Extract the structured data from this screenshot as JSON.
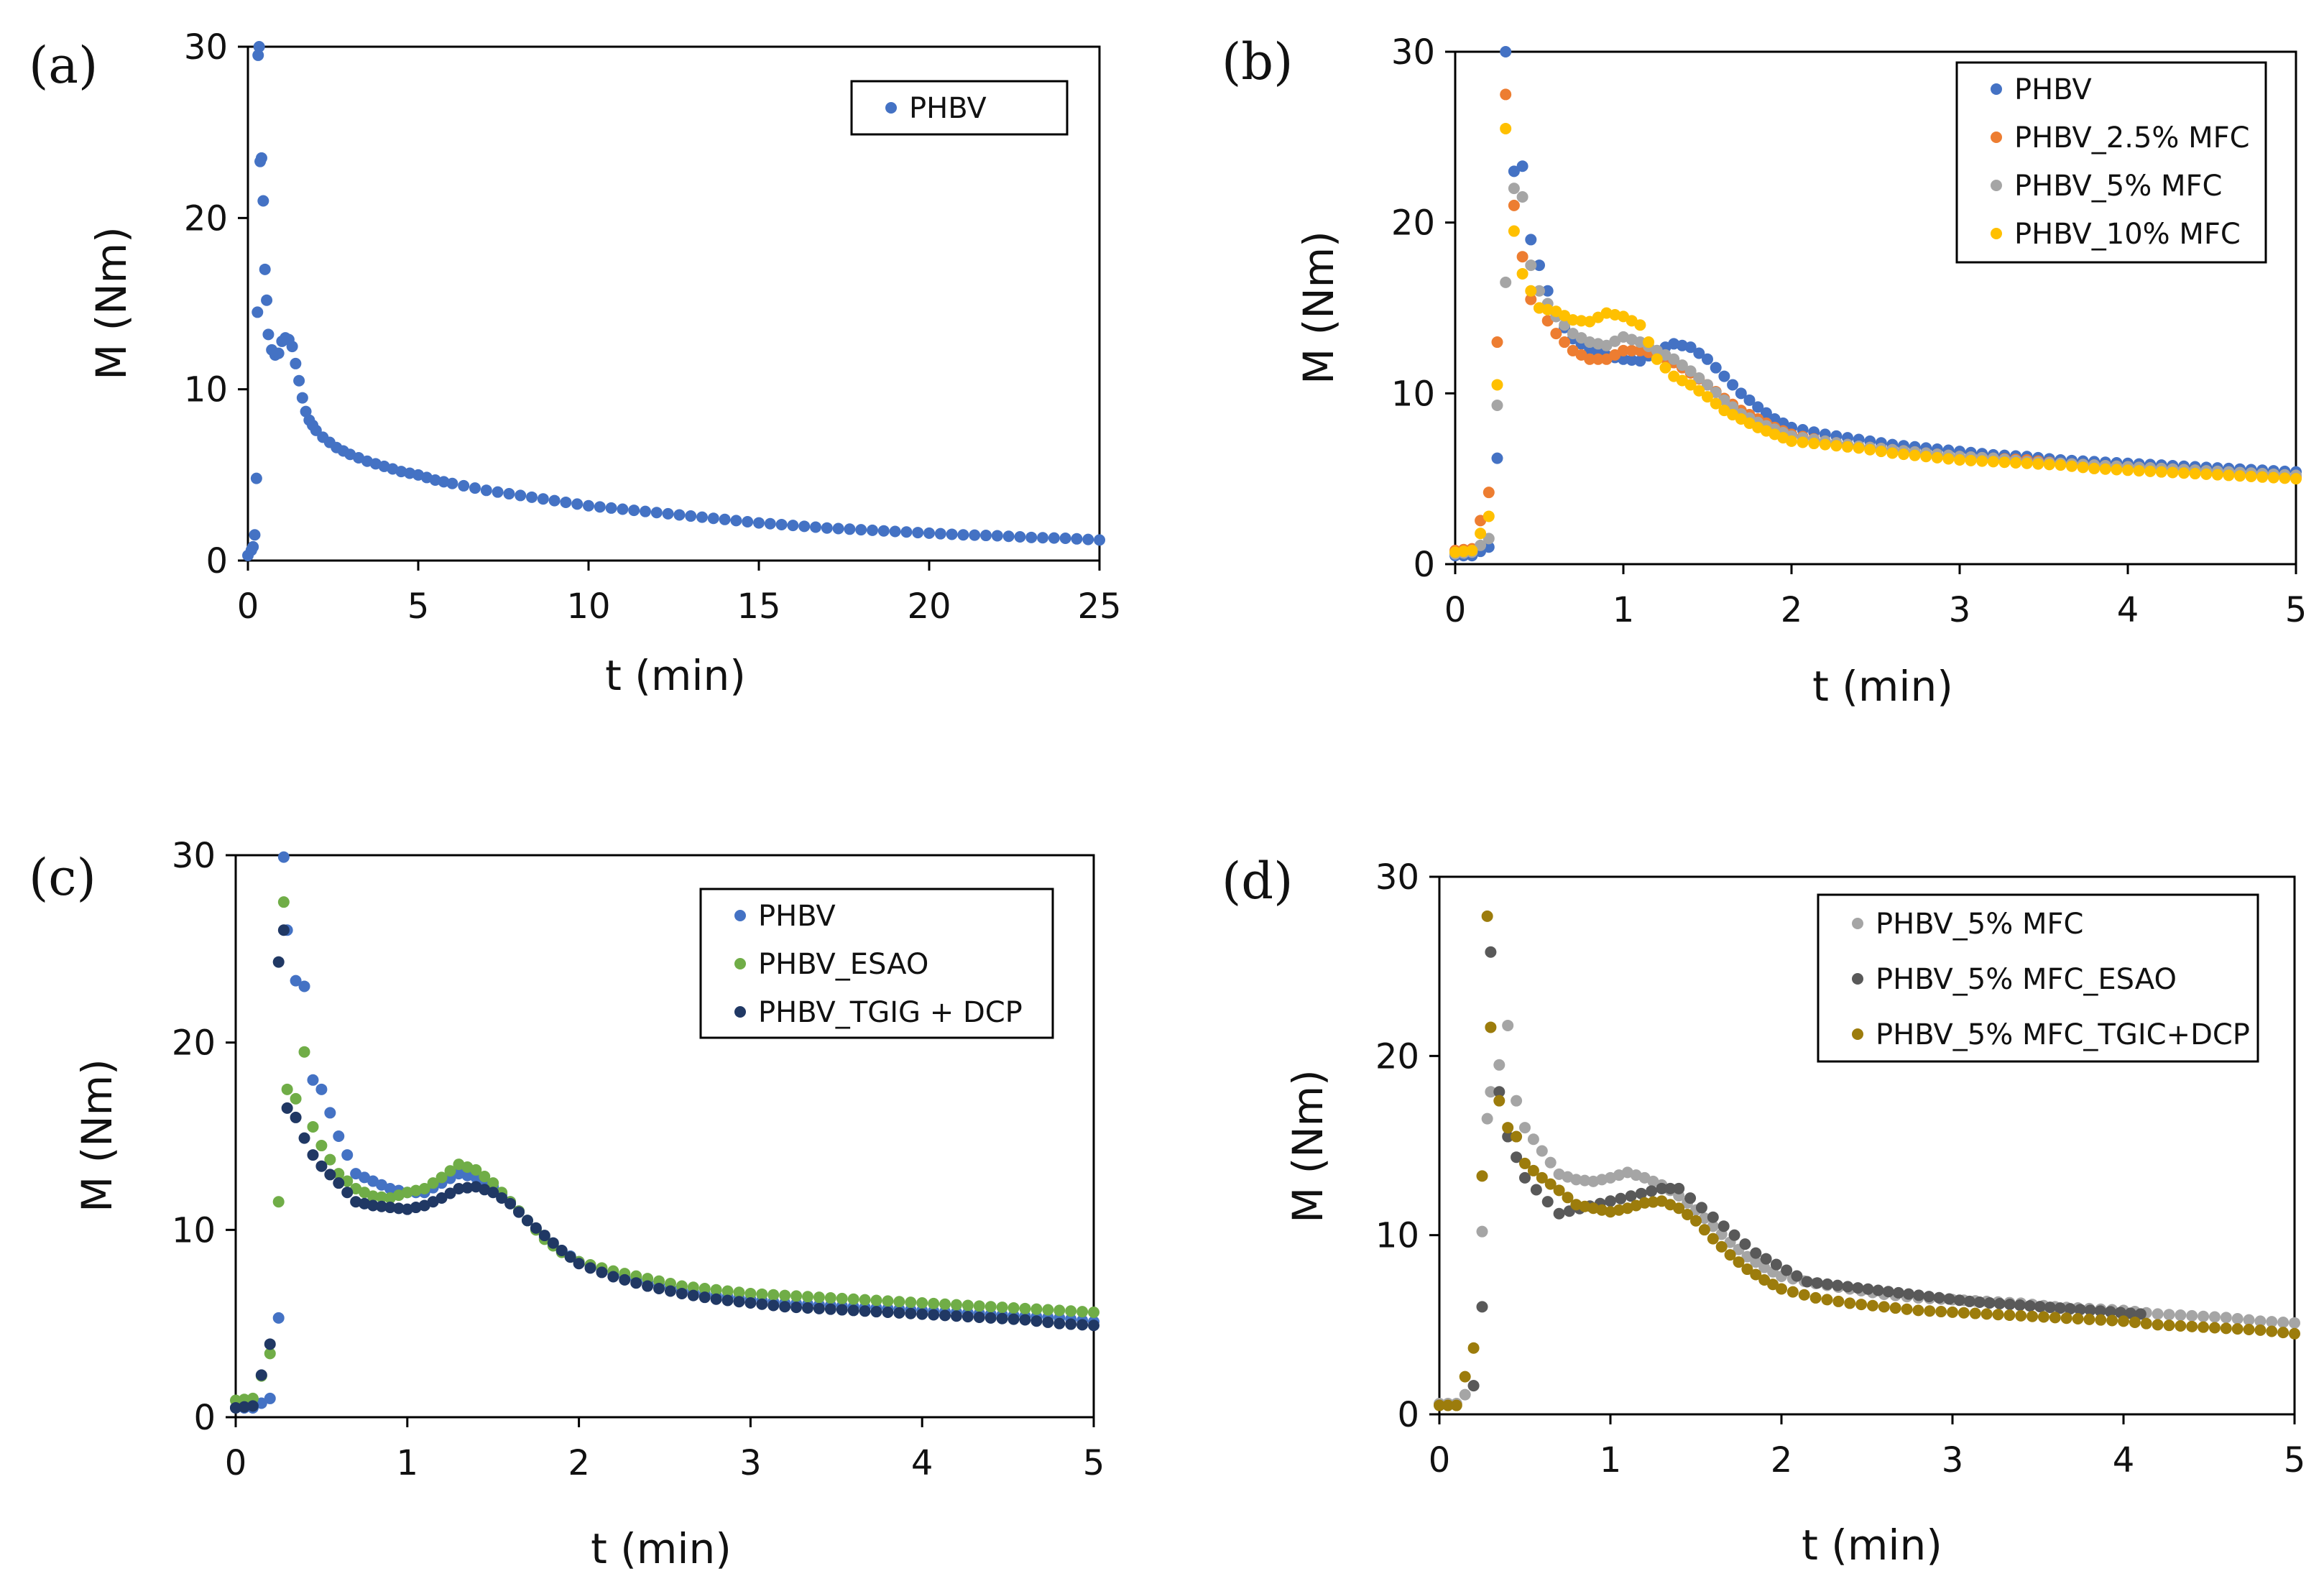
{
  "chart_data": [
    {
      "type": "scatter",
      "panel_label": "(a)",
      "xlabel": "t (min)",
      "ylabel": "M (Nm)",
      "xlim": [
        0,
        25
      ],
      "ylim": [
        0,
        30
      ],
      "xticks": [
        0,
        5,
        10,
        15,
        20,
        25
      ],
      "yticks": [
        0,
        10,
        20,
        30
      ],
      "legend_position": "top-right",
      "series": [
        {
          "name": "PHBV",
          "color": "#4472c4",
          "x": [
            0,
            0.1,
            0.15,
            0.2,
            0.25,
            0.28,
            0.3,
            0.33,
            0.36,
            0.4,
            0.45,
            0.5,
            0.55,
            0.6,
            0.7,
            0.8,
            0.9,
            1.0,
            1.1,
            1.2,
            1.3,
            1.4,
            1.5,
            1.6,
            1.7,
            1.8,
            1.9,
            2.0,
            2.2,
            2.4,
            2.6,
            2.8,
            3.0,
            3.5,
            4.0,
            4.5,
            5.0,
            5.5,
            6.0,
            7.0,
            8.0,
            9.0,
            10.0,
            11.0,
            12.0,
            13.0,
            14.0,
            15.0,
            16.0,
            17.0,
            18.0,
            19.0,
            20.0,
            21.0,
            22.0,
            23.0,
            24.0,
            25.0
          ],
          "y": [
            0.3,
            0.6,
            0.8,
            1.5,
            4.8,
            14.5,
            29.5,
            30.0,
            23.3,
            23.5,
            21.0,
            17.0,
            15.2,
            13.2,
            12.3,
            12.0,
            12.1,
            12.8,
            13.0,
            12.9,
            12.5,
            11.5,
            10.5,
            9.5,
            8.7,
            8.2,
            7.9,
            7.6,
            7.2,
            6.9,
            6.6,
            6.4,
            6.2,
            5.8,
            5.5,
            5.2,
            5.0,
            4.7,
            4.5,
            4.1,
            3.8,
            3.5,
            3.2,
            3.0,
            2.8,
            2.6,
            2.4,
            2.2,
            2.05,
            1.9,
            1.8,
            1.7,
            1.6,
            1.5,
            1.45,
            1.35,
            1.3,
            1.2
          ]
        }
      ]
    },
    {
      "type": "scatter",
      "panel_label": "(b)",
      "xlabel": "t (min)",
      "ylabel": "M (Nm)",
      "xlim": [
        0,
        5
      ],
      "ylim": [
        0,
        30
      ],
      "xticks": [
        0,
        1,
        2,
        3,
        4,
        5
      ],
      "yticks": [
        0,
        10,
        20,
        30
      ],
      "legend_position": "top-right",
      "series": [
        {
          "name": "PHBV",
          "color": "#4472c4",
          "x": [
            0,
            0.1,
            0.2,
            0.25,
            0.3,
            0.35,
            0.4,
            0.45,
            0.5,
            0.6,
            0.7,
            0.8,
            0.9,
            1.0,
            1.1,
            1.2,
            1.3,
            1.4,
            1.5,
            1.6,
            1.7,
            1.8,
            1.9,
            2.0,
            2.2,
            2.4,
            2.6,
            2.8,
            3.0,
            3.2,
            3.4,
            3.6,
            3.8,
            4.0,
            4.2,
            4.4,
            4.6,
            4.8,
            5.0
          ],
          "y": [
            0.5,
            0.5,
            1.0,
            6.2,
            30.0,
            23.0,
            23.3,
            19.0,
            17.5,
            14.5,
            13.2,
            12.6,
            12.2,
            12.0,
            11.9,
            12.5,
            12.9,
            12.7,
            12.0,
            11.0,
            10.0,
            9.2,
            8.5,
            8.0,
            7.6,
            7.3,
            7.0,
            6.8,
            6.6,
            6.4,
            6.3,
            6.1,
            6.0,
            5.9,
            5.8,
            5.7,
            5.6,
            5.5,
            5.4
          ]
        },
        {
          "name": "PHBV_2.5% MFC",
          "color": "#ed7d31",
          "x": [
            0,
            0.1,
            0.2,
            0.25,
            0.3,
            0.35,
            0.4,
            0.45,
            0.5,
            0.6,
            0.7,
            0.8,
            0.9,
            1.0,
            1.1,
            1.2,
            1.3,
            1.4,
            1.5,
            1.6,
            1.7,
            1.8,
            1.9,
            2.0,
            2.2,
            2.4,
            2.6,
            2.8,
            3.0,
            3.2,
            3.4,
            3.6,
            3.8,
            4.0,
            4.2,
            4.4,
            4.6,
            4.8,
            5.0
          ],
          "y": [
            0.8,
            0.9,
            4.2,
            13.0,
            27.5,
            21.0,
            18.0,
            15.5,
            15.0,
            13.5,
            12.5,
            12.0,
            12.0,
            12.5,
            12.5,
            12.3,
            11.8,
            11.2,
            10.5,
            9.7,
            9.0,
            8.5,
            8.0,
            7.6,
            7.2,
            6.9,
            6.7,
            6.5,
            6.3,
            6.2,
            6.1,
            5.9,
            5.8,
            5.7,
            5.6,
            5.5,
            5.3,
            5.2,
            5.1
          ]
        },
        {
          "name": "PHBV_5% MFC",
          "color": "#a5a5a5",
          "x": [
            0,
            0.1,
            0.2,
            0.25,
            0.3,
            0.35,
            0.4,
            0.45,
            0.5,
            0.6,
            0.7,
            0.8,
            0.9,
            1.0,
            1.1,
            1.2,
            1.3,
            1.4,
            1.5,
            1.6,
            1.7,
            1.8,
            1.9,
            2.0,
            2.2,
            2.4,
            2.6,
            2.8,
            3.0,
            3.2,
            3.4,
            3.6,
            3.8,
            4.0,
            4.2,
            4.4,
            4.6,
            4.8,
            5.0
          ],
          "y": [
            0.6,
            0.7,
            1.5,
            9.3,
            16.5,
            22.0,
            21.5,
            17.5,
            16.0,
            14.5,
            13.5,
            13.0,
            12.8,
            13.3,
            13.0,
            12.5,
            12.0,
            11.3,
            10.5,
            9.6,
            8.8,
            8.3,
            7.9,
            7.5,
            7.2,
            6.9,
            6.7,
            6.5,
            6.3,
            6.2,
            6.0,
            5.9,
            5.8,
            5.7,
            5.6,
            5.5,
            5.4,
            5.3,
            5.2
          ]
        },
        {
          "name": "PHBV_10% MFC",
          "color": "#ffc000",
          "x": [
            0,
            0.1,
            0.2,
            0.25,
            0.3,
            0.35,
            0.4,
            0.45,
            0.5,
            0.6,
            0.7,
            0.8,
            0.9,
            1.0,
            1.1,
            1.2,
            1.3,
            1.4,
            1.5,
            1.6,
            1.7,
            1.8,
            1.9,
            2.0,
            2.2,
            2.4,
            2.6,
            2.8,
            3.0,
            3.2,
            3.4,
            3.6,
            3.8,
            4.0,
            4.2,
            4.4,
            4.6,
            4.8,
            5.0
          ],
          "y": [
            0.7,
            0.8,
            2.8,
            10.5,
            25.5,
            19.5,
            17.0,
            16.0,
            15.0,
            14.8,
            14.3,
            14.2,
            14.7,
            14.5,
            14.0,
            12.0,
            11.0,
            10.5,
            9.8,
            9.0,
            8.5,
            8.0,
            7.6,
            7.2,
            7.0,
            6.8,
            6.5,
            6.3,
            6.1,
            6.0,
            5.9,
            5.8,
            5.6,
            5.5,
            5.4,
            5.3,
            5.2,
            5.1,
            5.0
          ]
        }
      ]
    },
    {
      "type": "scatter",
      "panel_label": "(c)",
      "xlabel": "t (min)",
      "ylabel": "M (Nm)",
      "xlim": [
        0,
        5
      ],
      "ylim": [
        0,
        30
      ],
      "xticks": [
        0,
        1,
        2,
        3,
        4,
        5
      ],
      "yticks": [
        0,
        10,
        20,
        30
      ],
      "legend_position": "top-right",
      "series": [
        {
          "name": "PHBV",
          "color": "#4472c4",
          "x": [
            0,
            0.1,
            0.2,
            0.25,
            0.28,
            0.3,
            0.35,
            0.4,
            0.45,
            0.5,
            0.6,
            0.7,
            0.8,
            0.9,
            1.0,
            1.1,
            1.2,
            1.3,
            1.4,
            1.5,
            1.6,
            1.7,
            1.8,
            1.9,
            2.0,
            2.2,
            2.4,
            2.6,
            2.8,
            3.0,
            3.2,
            3.4,
            3.6,
            3.8,
            4.0,
            4.2,
            4.4,
            4.6,
            4.8,
            5.0
          ],
          "y": [
            0.5,
            0.5,
            1.0,
            5.3,
            29.9,
            26.0,
            23.3,
            23.0,
            18.0,
            17.5,
            15.0,
            13.0,
            12.6,
            12.2,
            12.0,
            12.0,
            12.5,
            13.0,
            12.8,
            12.3,
            11.5,
            10.5,
            9.6,
            8.9,
            8.3,
            7.6,
            7.2,
            6.8,
            6.5,
            6.3,
            6.1,
            6.0,
            5.9,
            5.8,
            5.7,
            5.6,
            5.5,
            5.4,
            5.3,
            5.1
          ]
        },
        {
          "name": "PHBV_ESAO",
          "color": "#70ad47",
          "x": [
            0,
            0.1,
            0.2,
            0.25,
            0.28,
            0.3,
            0.35,
            0.4,
            0.45,
            0.5,
            0.6,
            0.7,
            0.8,
            0.9,
            1.0,
            1.1,
            1.2,
            1.3,
            1.4,
            1.5,
            1.6,
            1.7,
            1.8,
            1.9,
            2.0,
            2.2,
            2.4,
            2.6,
            2.8,
            3.0,
            3.2,
            3.4,
            3.6,
            3.8,
            4.0,
            4.2,
            4.4,
            4.6,
            4.8,
            5.0
          ],
          "y": [
            0.9,
            1.0,
            3.4,
            11.5,
            27.5,
            17.5,
            17.0,
            19.5,
            15.5,
            14.5,
            13.0,
            12.2,
            11.8,
            11.7,
            12.0,
            12.2,
            12.8,
            13.5,
            13.2,
            12.5,
            11.5,
            10.5,
            9.5,
            8.8,
            8.3,
            7.8,
            7.4,
            7.0,
            6.8,
            6.6,
            6.5,
            6.4,
            6.3,
            6.2,
            6.1,
            6.0,
            5.9,
            5.8,
            5.7,
            5.6
          ]
        },
        {
          "name": "PHBV_TGIG + DCP",
          "color": "#203864",
          "x": [
            0,
            0.1,
            0.2,
            0.25,
            0.28,
            0.3,
            0.35,
            0.4,
            0.45,
            0.5,
            0.6,
            0.7,
            0.8,
            0.9,
            1.0,
            1.1,
            1.2,
            1.3,
            1.4,
            1.5,
            1.6,
            1.7,
            1.8,
            1.9,
            2.0,
            2.2,
            2.4,
            2.6,
            2.8,
            3.0,
            3.2,
            3.4,
            3.6,
            3.8,
            4.0,
            4.2,
            4.4,
            4.6,
            4.8,
            5.0
          ],
          "y": [
            0.5,
            0.6,
            3.9,
            24.3,
            26.0,
            16.5,
            16.0,
            14.9,
            14.0,
            13.4,
            12.5,
            11.5,
            11.3,
            11.2,
            11.1,
            11.3,
            11.7,
            12.2,
            12.3,
            12.0,
            11.4,
            10.5,
            9.7,
            8.9,
            8.2,
            7.5,
            7.0,
            6.6,
            6.3,
            6.1,
            5.9,
            5.8,
            5.7,
            5.6,
            5.5,
            5.4,
            5.3,
            5.2,
            5.0,
            4.9
          ]
        }
      ]
    },
    {
      "type": "scatter",
      "panel_label": "(d)",
      "xlabel": "t (min)",
      "ylabel": "M (Nm)",
      "xlim": [
        0,
        5
      ],
      "ylim": [
        0,
        30
      ],
      "xticks": [
        0,
        1,
        2,
        3,
        4,
        5
      ],
      "yticks": [
        0,
        10,
        20,
        30
      ],
      "legend_position": "top-right",
      "series": [
        {
          "name": "PHBV_5% MFC",
          "color": "#a5a5a5",
          "x": [
            0,
            0.1,
            0.2,
            0.25,
            0.28,
            0.3,
            0.35,
            0.4,
            0.45,
            0.5,
            0.6,
            0.7,
            0.8,
            0.9,
            1.0,
            1.1,
            1.2,
            1.3,
            1.4,
            1.5,
            1.6,
            1.7,
            1.8,
            1.9,
            2.0,
            2.2,
            2.4,
            2.6,
            2.8,
            3.0,
            3.2,
            3.4,
            3.6,
            3.8,
            4.0,
            4.2,
            4.4,
            4.6,
            4.8,
            5.0
          ],
          "y": [
            0.6,
            0.6,
            1.6,
            10.2,
            16.5,
            18.0,
            19.5,
            21.7,
            17.5,
            16.0,
            14.7,
            13.4,
            13.1,
            13.0,
            13.2,
            13.5,
            13.2,
            12.8,
            12.2,
            11.4,
            10.5,
            9.6,
            8.8,
            8.2,
            7.7,
            7.3,
            7.0,
            6.7,
            6.5,
            6.4,
            6.3,
            6.2,
            6.0,
            5.9,
            5.8,
            5.6,
            5.5,
            5.4,
            5.2,
            5.1
          ]
        },
        {
          "name": "PHBV_5% MFC_ESAO",
          "color": "#595959",
          "x": [
            0.2,
            0.25,
            0.3,
            0.35,
            0.4,
            0.5,
            0.7,
            1.3,
            1.4,
            1.6,
            1.85,
            2.15,
            3.1,
            4.1
          ],
          "y": [
            1.6,
            6.0,
            25.8,
            18.0,
            15.5,
            13.2,
            11.2,
            12.6,
            12.6,
            11.0,
            9.0,
            7.4,
            6.3,
            5.6
          ]
        },
        {
          "name": "PHBV_5% MFC_TGIC+DCP",
          "color": "#9c7c0c",
          "x": [
            0,
            0.1,
            0.2,
            0.25,
            0.28,
            0.3,
            0.35,
            0.4,
            0.45,
            0.5,
            0.6,
            0.7,
            0.8,
            0.9,
            1.0,
            1.1,
            1.2,
            1.3,
            1.4,
            1.5,
            1.6,
            1.7,
            1.8,
            1.9,
            2.0,
            2.2,
            2.4,
            2.6,
            2.8,
            3.0,
            3.2,
            3.4,
            3.6,
            3.8,
            4.0,
            4.2,
            4.4,
            4.6,
            4.8,
            5.0
          ],
          "y": [
            0.5,
            0.5,
            3.7,
            13.3,
            27.8,
            21.6,
            17.5,
            16.0,
            15.5,
            14.0,
            13.2,
            12.5,
            11.7,
            11.5,
            11.3,
            11.5,
            11.8,
            11.9,
            11.5,
            10.8,
            9.8,
            8.9,
            8.1,
            7.5,
            7.0,
            6.5,
            6.2,
            6.0,
            5.8,
            5.7,
            5.6,
            5.5,
            5.4,
            5.3,
            5.2,
            5.0,
            4.9,
            4.8,
            4.7,
            4.5
          ]
        }
      ]
    }
  ]
}
